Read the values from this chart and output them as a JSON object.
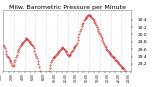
{
  "title": "Milw. Barometric Pressure per Minute",
  "line_color": "#cc0000",
  "bg_color": "#ffffff",
  "grid_color": "#999999",
  "title_fontsize": 4.5,
  "tick_fontsize": 3.2,
  "ylim_range": [
    29.0,
    30.65
  ],
  "right_yticks": [
    29.2,
    29.4,
    29.6,
    29.8,
    30.0,
    30.2,
    30.4
  ],
  "y_values": [
    29.72,
    29.68,
    29.62,
    29.55,
    29.48,
    29.42,
    29.38,
    29.35,
    29.32,
    29.28,
    29.22,
    29.18,
    29.15,
    29.18,
    29.25,
    29.32,
    29.38,
    29.45,
    29.52,
    29.58,
    29.62,
    29.68,
    29.72,
    29.75,
    29.78,
    29.8,
    29.82,
    29.85,
    29.88,
    29.9,
    29.88,
    29.85,
    29.82,
    29.8,
    29.78,
    29.75,
    29.72,
    29.68,
    29.62,
    29.55,
    29.48,
    29.42,
    29.35,
    29.28,
    29.2,
    29.12,
    29.02,
    28.92,
    28.8,
    28.68,
    28.55,
    28.42,
    28.32,
    28.48,
    28.65,
    28.78,
    28.9,
    29.0,
    29.1,
    29.18,
    29.25,
    29.3,
    29.35,
    29.38,
    29.4,
    29.42,
    29.45,
    29.48,
    29.5,
    29.52,
    29.55,
    29.58,
    29.6,
    29.62,
    29.65,
    29.62,
    29.6,
    29.58,
    29.55,
    29.52,
    29.48,
    29.45,
    29.42,
    29.45,
    29.48,
    29.52,
    29.55,
    29.58,
    29.62,
    29.65,
    29.68,
    29.72,
    29.78,
    29.85,
    29.92,
    30.0,
    30.08,
    30.15,
    30.22,
    30.28,
    30.32,
    30.38,
    30.42,
    30.45,
    30.48,
    30.5,
    30.52,
    30.52,
    30.52,
    30.5,
    30.48,
    30.45,
    30.42,
    30.38,
    30.35,
    30.3,
    30.25,
    30.2,
    30.15,
    30.1,
    30.05,
    30.0,
    29.95,
    29.9,
    29.85,
    29.8,
    29.75,
    29.7,
    29.65,
    29.6,
    29.58,
    29.55,
    29.52,
    29.5,
    29.48,
    29.45,
    29.42,
    29.4,
    29.38,
    29.35,
    29.32,
    29.3,
    29.28,
    29.25,
    29.22,
    29.2,
    29.18,
    29.15,
    29.12,
    29.1,
    29.08,
    29.05,
    29.02,
    28.98,
    28.95,
    28.92,
    28.9,
    28.88,
    28.85,
    28.82,
    28.8
  ],
  "num_vgrid": 11,
  "num_xticks": 24
}
